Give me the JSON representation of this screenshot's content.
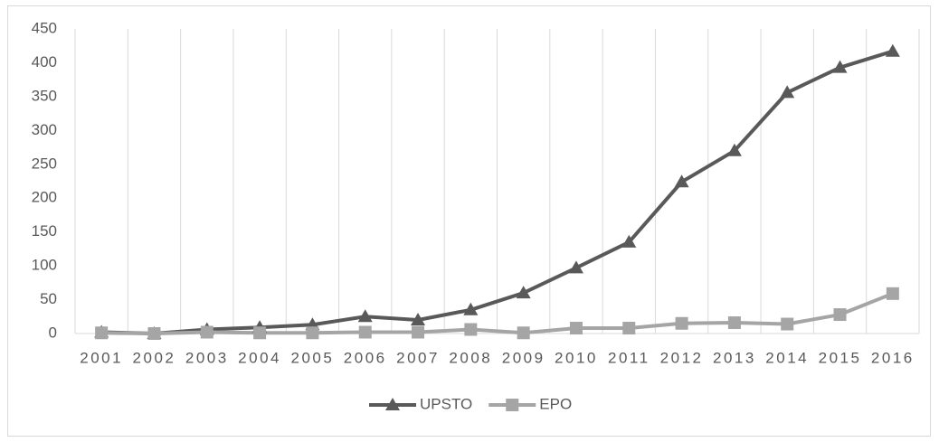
{
  "chart_data": {
    "type": "line",
    "categories": [
      "2001",
      "2002",
      "2003",
      "2004",
      "2005",
      "2006",
      "2007",
      "2008",
      "2009",
      "2010",
      "2011",
      "2012",
      "2013",
      "2014",
      "2015",
      "2016"
    ],
    "series": [
      {
        "name": "UPSTO",
        "color": "#595959",
        "marker": "triangle",
        "values": [
          2,
          0,
          6,
          9,
          13,
          25,
          20,
          35,
          60,
          97,
          135,
          224,
          270,
          356,
          393,
          417
        ]
      },
      {
        "name": "EPO",
        "color": "#a5a5a5",
        "marker": "square",
        "values": [
          1,
          0,
          2,
          1,
          1,
          2,
          2,
          6,
          1,
          8,
          8,
          15,
          16,
          14,
          28,
          59
        ]
      }
    ],
    "ylim": [
      0,
      450
    ],
    "yticks": [
      0,
      50,
      100,
      150,
      200,
      250,
      300,
      350,
      400,
      450
    ],
    "grid": "x",
    "legend": "bottom"
  }
}
